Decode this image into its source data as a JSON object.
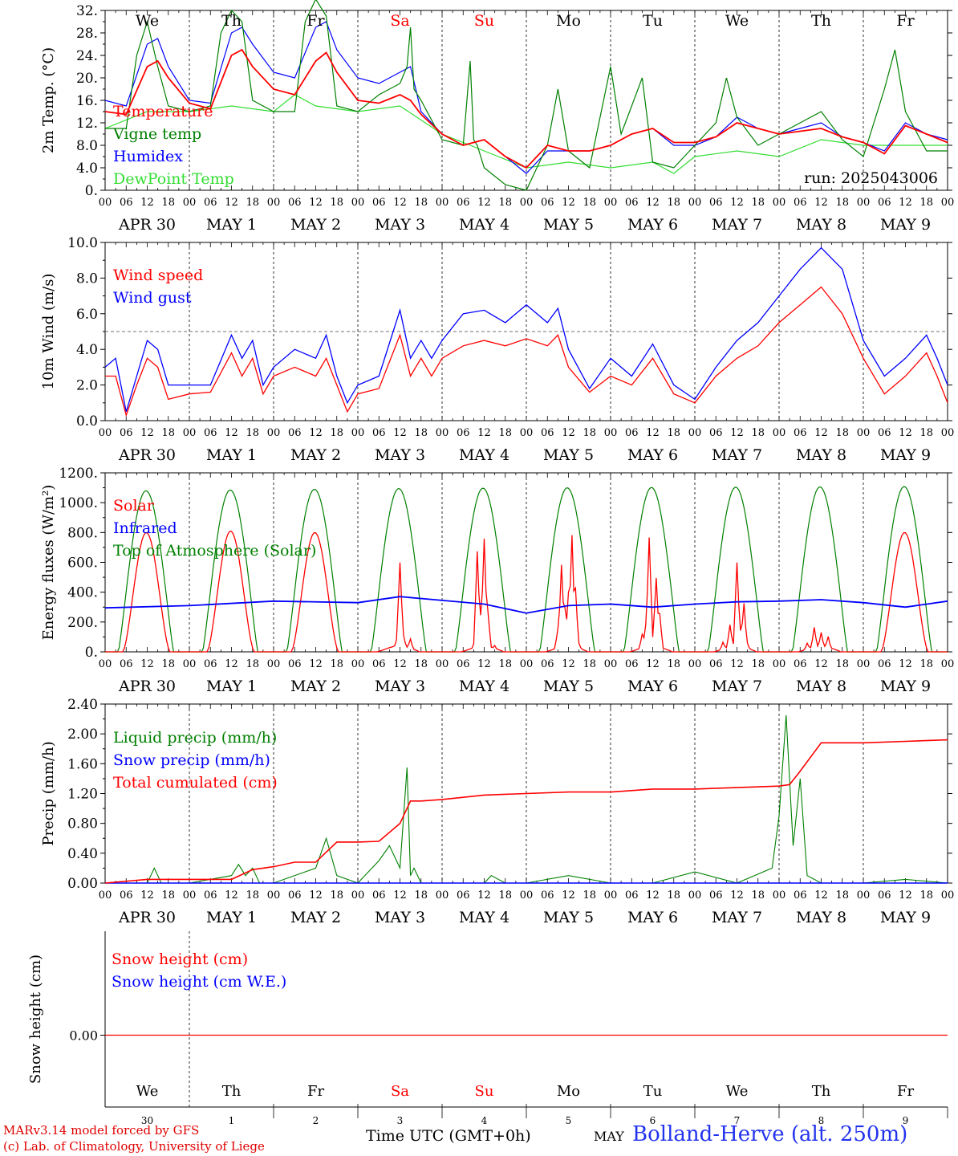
{
  "meteogram": {
    "run_label": "run: 2025043006",
    "location_label": "Bolland-Herve (alt. 250m)",
    "time_axis_title": "Time UTC (GMT+0h)",
    "month_footer": "MAY",
    "model_credit": "MARv3.14 model forced by GFS",
    "lab_credit": "(c) Lab. of Climatology, University of Liege",
    "day_names": [
      "We",
      "Th",
      "Fr",
      "Sa",
      "Su",
      "Mo",
      "Tu",
      "We",
      "Th",
      "Fr"
    ],
    "weekend_days": [
      "Sa",
      "Su"
    ],
    "day_numbers": [
      "30",
      "1",
      "2",
      "3",
      "4",
      "5",
      "6",
      "7",
      "8",
      "9"
    ],
    "date_labels": [
      "APR 30",
      "MAY  1",
      "MAY  2",
      "MAY  3",
      "MAY  4",
      "MAY  5",
      "MAY  6",
      "MAY  7",
      "MAY  8",
      "MAY  9"
    ],
    "hour_ticks": [
      "00",
      "06",
      "12",
      "18"
    ],
    "final_hour_tick": "00"
  },
  "chart_data": [
    {
      "type": "line",
      "id": "temperature",
      "ylabel": "2m Temp. (°C)",
      "ylim": [
        0,
        32
      ],
      "ytick_labels": [
        "0.",
        "4.0",
        "8.0",
        "12.",
        "16.",
        "20.",
        "24.",
        "28.",
        "32."
      ],
      "x_unit": "hours since Apr 30 00 UTC",
      "series": [
        {
          "name": "Temperature",
          "color": "#ff0000",
          "x": [
            0,
            6,
            12,
            15,
            18,
            24,
            30,
            36,
            39,
            42,
            48,
            54,
            60,
            63,
            66,
            72,
            78,
            84,
            87,
            90,
            96,
            102,
            108,
            114,
            120,
            126,
            132,
            138,
            144,
            150,
            156,
            162,
            168,
            174,
            180,
            186,
            192,
            198,
            204,
            210,
            216,
            222,
            228,
            234,
            240
          ],
          "y": [
            14,
            13.5,
            22,
            23,
            20,
            15.5,
            14.5,
            24,
            25,
            22,
            18,
            17,
            23,
            24.5,
            21,
            16,
            15.5,
            17,
            16,
            13.5,
            10,
            8,
            9,
            6,
            4,
            8,
            7,
            7,
            8,
            10,
            11,
            8.5,
            8.5,
            9.5,
            12,
            11,
            10,
            10.5,
            11,
            9.5,
            8.5,
            6.5,
            11.5,
            10,
            8.5
          ]
        },
        {
          "name": "Vigne temp",
          "color": "#008000",
          "x": [
            0,
            6,
            9,
            12,
            15,
            18,
            24,
            30,
            33,
            36,
            39,
            42,
            48,
            54,
            57,
            60,
            63,
            66,
            72,
            78,
            84,
            86,
            87,
            88,
            90,
            96,
            102,
            104,
            105,
            106,
            108,
            114,
            120,
            126,
            129,
            132,
            138,
            144,
            147,
            150,
            153,
            156,
            162,
            168,
            174,
            177,
            180,
            186,
            192,
            198,
            204,
            210,
            216,
            222,
            225,
            228,
            234,
            240
          ],
          "y": [
            11,
            11,
            24,
            30,
            22,
            15,
            14,
            15,
            28,
            32,
            30,
            16,
            14,
            14,
            30,
            34,
            31,
            15,
            14,
            17,
            19,
            22,
            29,
            18,
            16,
            9,
            8,
            23,
            9,
            8,
            4,
            1,
            0,
            8,
            18,
            7,
            4,
            22,
            10,
            15,
            20,
            5,
            4,
            8,
            12,
            20,
            13,
            8,
            10,
            12,
            14,
            9,
            6,
            18,
            25,
            14,
            7,
            7
          ]
        },
        {
          "name": "Humidex",
          "color": "#0000ff",
          "x": [
            0,
            6,
            12,
            15,
            18,
            24,
            30,
            36,
            39,
            42,
            48,
            54,
            60,
            63,
            66,
            72,
            78,
            84,
            87,
            90,
            96,
            102,
            108,
            114,
            120,
            126,
            132,
            138,
            144,
            150,
            156,
            162,
            168,
            174,
            180,
            186,
            192,
            198,
            204,
            210,
            216,
            222,
            228,
            234,
            240
          ],
          "y": [
            16,
            15,
            26,
            27,
            22,
            16,
            15.5,
            28,
            29,
            26,
            21,
            20,
            29,
            30,
            25,
            20,
            19,
            21,
            22,
            14,
            10,
            8,
            9,
            6,
            3,
            7,
            7,
            7,
            8,
            10,
            11,
            8,
            8,
            9.5,
            13,
            11,
            10,
            11,
            12,
            9.5,
            8.5,
            7,
            12,
            10,
            9
          ]
        },
        {
          "name": "DewPoint Temp",
          "color": "#33dd33",
          "x": [
            0,
            12,
            24,
            36,
            48,
            54,
            60,
            72,
            84,
            96,
            108,
            120,
            132,
            144,
            156,
            162,
            168,
            180,
            192,
            204,
            216,
            228,
            240
          ],
          "y": [
            11,
            14,
            14,
            15,
            14,
            17,
            15,
            14,
            15,
            10,
            7,
            4,
            5,
            4,
            5,
            3,
            6,
            7,
            6,
            9,
            8,
            8,
            8
          ]
        }
      ]
    },
    {
      "type": "line",
      "id": "wind",
      "ylabel": "10m Wind (m/s)",
      "ylim": [
        0,
        10
      ],
      "ytick_labels": [
        "0.0",
        "2.0",
        "4.0",
        "6.0",
        "8.0",
        "10.0"
      ],
      "reference_line": 5,
      "x_unit": "hours since Apr 30 00 UTC",
      "series": [
        {
          "name": "Wind speed",
          "color": "#ff0000",
          "x": [
            0,
            3,
            6,
            9,
            12,
            15,
            18,
            24,
            30,
            36,
            39,
            42,
            45,
            48,
            54,
            60,
            63,
            66,
            69,
            72,
            78,
            84,
            87,
            90,
            93,
            96,
            102,
            108,
            114,
            120,
            126,
            129,
            132,
            138,
            144,
            150,
            156,
            162,
            168,
            174,
            180,
            186,
            192,
            198,
            204,
            210,
            216,
            222,
            228,
            234,
            237,
            240
          ],
          "y": [
            2.5,
            2.5,
            0.3,
            2,
            3.5,
            3,
            1.2,
            1.5,
            1.6,
            3.8,
            2.5,
            3.5,
            1.5,
            2.5,
            3,
            2.5,
            3.5,
            2,
            0.5,
            1.5,
            1.8,
            4.8,
            2.5,
            3.5,
            2.5,
            3.5,
            4.2,
            4.5,
            4.2,
            4.6,
            4.2,
            4.8,
            3,
            1.6,
            2.5,
            2.0,
            3.5,
            1.5,
            1,
            2.5,
            3.5,
            4.2,
            5.5,
            6.5,
            7.5,
            6,
            3.5,
            1.5,
            2.5,
            3.8,
            2.5,
            1
          ]
        },
        {
          "name": "Wind gust",
          "color": "#0000ff",
          "x": [
            0,
            3,
            6,
            9,
            12,
            15,
            18,
            24,
            30,
            36,
            39,
            42,
            45,
            48,
            54,
            60,
            63,
            66,
            69,
            72,
            78,
            84,
            87,
            90,
            93,
            96,
            102,
            108,
            114,
            120,
            126,
            129,
            132,
            138,
            144,
            150,
            156,
            162,
            168,
            174,
            180,
            186,
            192,
            198,
            204,
            210,
            216,
            222,
            228,
            234,
            237,
            240
          ],
          "y": [
            3,
            3.5,
            0.5,
            2.5,
            4.5,
            4,
            2,
            2,
            2,
            4.8,
            3.5,
            4.5,
            2,
            3,
            4,
            3.5,
            4.8,
            2.5,
            1,
            2,
            2.5,
            6.2,
            3.5,
            4.5,
            3.5,
            4.5,
            6,
            6.2,
            5.5,
            6.5,
            5.5,
            6.3,
            4,
            1.8,
            3.5,
            2.5,
            4.3,
            2,
            1.2,
            3,
            4.5,
            5.5,
            7,
            8.5,
            9.7,
            8.5,
            4.5,
            2.5,
            3.5,
            4.8,
            3.5,
            2
          ]
        }
      ]
    },
    {
      "type": "line",
      "id": "radiation",
      "ylabel": "Energy fluxes (W/m²)",
      "ylim": [
        0,
        1200
      ],
      "ytick_labels": [
        "0.",
        "200.",
        "400.",
        "600.",
        "800.",
        "1000.",
        "1200."
      ],
      "x_unit": "hours since Apr 30 00 UTC",
      "series": [
        {
          "name": "Solar",
          "color": "#ff0000",
          "solar_peak_by_day": [
            800,
            810,
            800,
            630,
            780,
            820,
            760,
            600,
            190,
            800
          ]
        },
        {
          "name": "Infrared",
          "color": "#0000ff",
          "x": [
            0,
            24,
            48,
            72,
            84,
            96,
            108,
            120,
            132,
            144,
            156,
            168,
            180,
            192,
            204,
            216,
            228,
            240
          ],
          "y": [
            295,
            310,
            340,
            330,
            370,
            345,
            320,
            260,
            310,
            320,
            300,
            320,
            335,
            340,
            350,
            330,
            300,
            340
          ]
        },
        {
          "name": "Top of Atmosphere (Solar)",
          "color": "#008000",
          "toa_peak_by_day": [
            1080,
            1085,
            1090,
            1095,
            1098,
            1100,
            1102,
            1104,
            1106,
            1108
          ]
        }
      ]
    },
    {
      "type": "line",
      "id": "precipitation",
      "ylabel": "Precip (mm/h)",
      "ylim": [
        0,
        2.4
      ],
      "ytick_labels": [
        "0.00",
        "0.40",
        "0.80",
        "1.20",
        "1.60",
        "2.00",
        "2.40"
      ],
      "x_unit": "hours since Apr 30 00 UTC",
      "series": [
        {
          "name": "Liquid precip (mm/h)",
          "color": "#008000",
          "x": [
            0,
            12,
            14,
            16,
            18,
            24,
            36,
            38,
            40,
            42,
            44,
            48,
            60,
            63,
            66,
            72,
            78,
            81,
            84,
            86,
            87,
            88,
            90,
            96,
            108,
            110,
            114,
            120,
            132,
            144,
            156,
            168,
            180,
            190,
            192,
            194,
            196,
            198,
            200,
            204,
            216,
            228,
            240
          ],
          "y": [
            0,
            0,
            0.2,
            0,
            0,
            0,
            0.1,
            0.25,
            0.1,
            0.2,
            0,
            0,
            0.2,
            0.6,
            0.1,
            0,
            0.3,
            0.5,
            0.2,
            1.55,
            0.1,
            0.2,
            0,
            0,
            0,
            0.1,
            0,
            0,
            0.1,
            0,
            0,
            0.15,
            0,
            0.2,
            0.9,
            2.25,
            0.5,
            1.4,
            0.1,
            0,
            0,
            0.05,
            0
          ]
        },
        {
          "name": "Snow precip (mm/h)",
          "color": "#0000ff",
          "x": [
            0,
            240
          ],
          "y": [
            0,
            0
          ]
        },
        {
          "name": "Total cumulated (cm)",
          "color": "#ff0000",
          "x": [
            0,
            12,
            24,
            36,
            42,
            48,
            54,
            60,
            66,
            72,
            78,
            84,
            87,
            90,
            96,
            108,
            120,
            132,
            144,
            156,
            168,
            180,
            192,
            195,
            198,
            204,
            216,
            228,
            240
          ],
          "y": [
            0,
            0.05,
            0.05,
            0.05,
            0.18,
            0.22,
            0.28,
            0.28,
            0.55,
            0.55,
            0.56,
            0.8,
            1.1,
            1.1,
            1.12,
            1.18,
            1.2,
            1.22,
            1.22,
            1.26,
            1.26,
            1.28,
            1.3,
            1.32,
            1.5,
            1.88,
            1.88,
            1.9,
            1.92
          ]
        }
      ]
    },
    {
      "type": "line",
      "id": "snow",
      "ylabel": "Snow height (cm)",
      "ylim": [
        0,
        1
      ],
      "ytick_labels": [
        "0.00"
      ],
      "x_unit": "hours since Apr 30 00 UTC",
      "series": [
        {
          "name": "Snow height (cm)",
          "color": "#ff0000",
          "x": [
            0,
            240
          ],
          "y": [
            0,
            0
          ]
        },
        {
          "name": "Snow height (cm W.E.)",
          "color": "#0000ff",
          "x": [
            0,
            240
          ],
          "y": [
            0,
            0
          ]
        }
      ]
    }
  ]
}
